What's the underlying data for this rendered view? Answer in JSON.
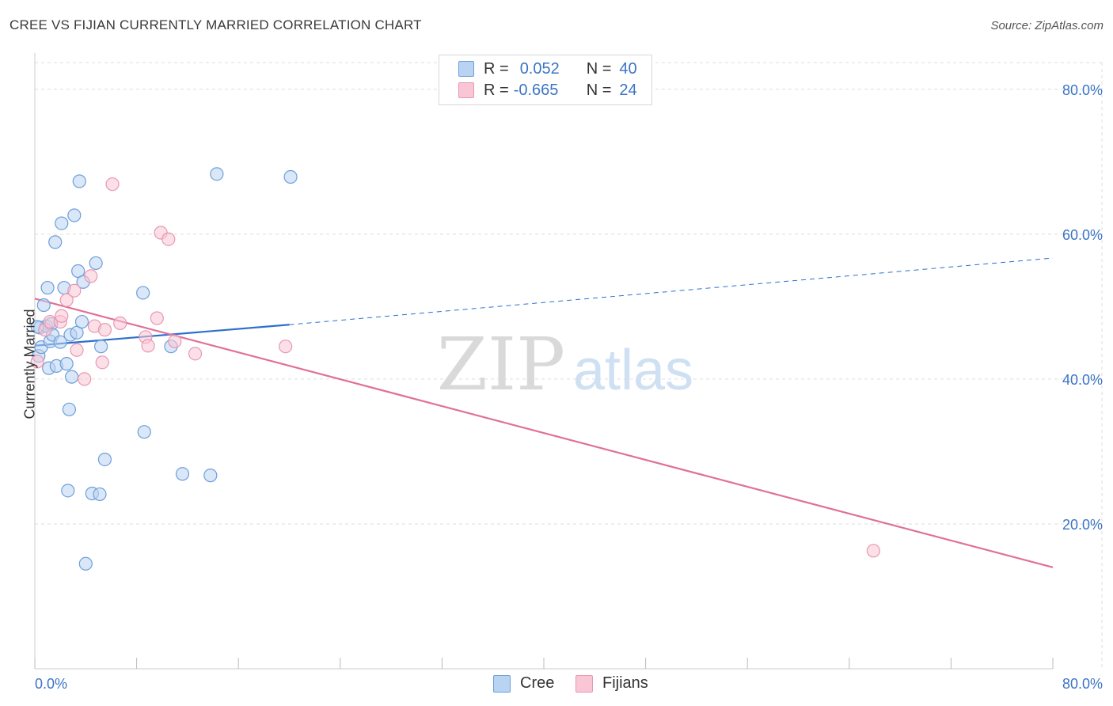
{
  "header": {
    "title": "CREE VS FIJIAN CURRENTLY MARRIED CORRELATION CHART",
    "source": "Source: ZipAtlas.com"
  },
  "legend": {
    "cree": {
      "r_label": "R =",
      "r_value": "0.052",
      "n_label": "N =",
      "n_value": "40"
    },
    "fijians": {
      "r_label": "R =",
      "r_value": "-0.665",
      "n_label": "N =",
      "n_value": "24"
    }
  },
  "bottom_legend": {
    "cree": "Cree",
    "fijians": "Fijians"
  },
  "watermark": {
    "zip": "ZIP",
    "atlas": "atlas"
  },
  "colors": {
    "cree_fill": "#b9d3f3",
    "cree_stroke": "#6e9fd8",
    "cree_line": "#2e6fce",
    "fijian_fill": "#f9c6d6",
    "fijian_stroke": "#e897b2",
    "fijian_line": "#e0709a",
    "tick_label": "#3b74c4",
    "grid": "#dddddd"
  },
  "chart_data": {
    "type": "scatter",
    "title": "CREE VS FIJIAN CURRENTLY MARRIED CORRELATION CHART",
    "xlabel": "",
    "ylabel": "Currently Married",
    "xlim": [
      0,
      80
    ],
    "ylim": [
      0,
      85
    ],
    "x_tick_labels": [
      "0.0%",
      "80.0%"
    ],
    "y_ticks": [
      20,
      40,
      60,
      80
    ],
    "y_tick_labels": [
      "20.0%",
      "40.0%",
      "60.0%",
      "80.0%"
    ],
    "grid": true,
    "series": [
      {
        "name": "Cree",
        "points": [
          [
            0.3,
            43.2
          ],
          [
            0.4,
            47.1
          ],
          [
            0.5,
            44.4
          ],
          [
            0.7,
            50.2
          ],
          [
            0.9,
            47.3
          ],
          [
            1.0,
            52.6
          ],
          [
            1.1,
            41.5
          ],
          [
            1.2,
            45.2
          ],
          [
            1.3,
            47.6
          ],
          [
            1.4,
            46.1
          ],
          [
            1.6,
            58.9
          ],
          [
            1.7,
            41.8
          ],
          [
            2.0,
            45.1
          ],
          [
            2.1,
            61.5
          ],
          [
            2.3,
            52.6
          ],
          [
            2.5,
            42.1
          ],
          [
            2.6,
            24.6
          ],
          [
            2.7,
            35.8
          ],
          [
            2.8,
            46.1
          ],
          [
            2.9,
            40.3
          ],
          [
            3.1,
            62.6
          ],
          [
            3.3,
            46.4
          ],
          [
            3.4,
            54.9
          ],
          [
            3.5,
            67.3
          ],
          [
            3.7,
            47.9
          ],
          [
            3.8,
            53.4
          ],
          [
            4.0,
            14.5
          ],
          [
            4.5,
            24.2
          ],
          [
            4.8,
            56.0
          ],
          [
            5.1,
            24.1
          ],
          [
            5.2,
            44.5
          ],
          [
            5.5,
            28.9
          ],
          [
            8.5,
            51.9
          ],
          [
            8.6,
            32.7
          ],
          [
            10.7,
            44.5
          ],
          [
            11.6,
            26.9
          ],
          [
            13.8,
            26.7
          ],
          [
            14.3,
            68.3
          ],
          [
            20.1,
            67.9
          ],
          [
            0.2,
            47.2
          ]
        ],
        "trend": {
          "x0": 0,
          "y0": 44.6,
          "x1": 20,
          "y1": 47.5,
          "dashed_to_x": 80,
          "dashed_to_y": 56.7
        }
      },
      {
        "name": "Fijians",
        "points": [
          [
            0.2,
            42.4
          ],
          [
            0.8,
            46.8
          ],
          [
            1.2,
            47.9
          ],
          [
            2.0,
            47.9
          ],
          [
            2.1,
            48.7
          ],
          [
            2.5,
            50.9
          ],
          [
            3.1,
            52.2
          ],
          [
            3.3,
            44.0
          ],
          [
            3.9,
            40.0
          ],
          [
            4.4,
            54.2
          ],
          [
            4.7,
            47.3
          ],
          [
            5.3,
            42.3
          ],
          [
            5.5,
            46.8
          ],
          [
            6.1,
            66.9
          ],
          [
            6.7,
            47.7
          ],
          [
            8.7,
            45.8
          ],
          [
            8.9,
            44.6
          ],
          [
            9.6,
            48.4
          ],
          [
            9.9,
            60.2
          ],
          [
            10.5,
            59.3
          ],
          [
            11.0,
            45.2
          ],
          [
            12.6,
            43.5
          ],
          [
            19.7,
            44.5
          ],
          [
            65.9,
            16.3
          ]
        ],
        "trend": {
          "x0": 0,
          "y0": 51.1,
          "x1": 80,
          "y1": 14.0
        }
      }
    ]
  }
}
